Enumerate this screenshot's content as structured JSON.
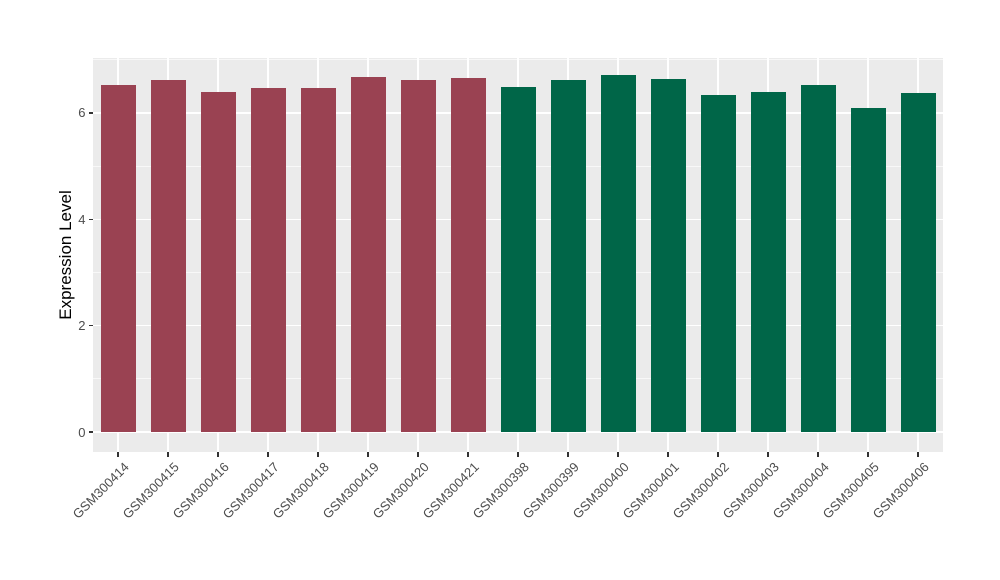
{
  "chart_data": {
    "type": "bar",
    "title": "",
    "xlabel": "",
    "ylabel": "Expression Level",
    "ylim": [
      0,
      7
    ],
    "yticks": [
      0,
      2,
      4,
      6
    ],
    "minor_yticks": [
      1,
      3,
      5,
      7
    ],
    "grid": "on",
    "legend": "none",
    "categories": [
      "GSM300414",
      "GSM300415",
      "GSM300416",
      "GSM300417",
      "GSM300418",
      "GSM300419",
      "GSM300420",
      "GSM300421",
      "GSM300398",
      "GSM300399",
      "GSM300400",
      "GSM300401",
      "GSM300402",
      "GSM300403",
      "GSM300404",
      "GSM300405",
      "GSM300406"
    ],
    "values": [
      6.52,
      6.62,
      6.4,
      6.47,
      6.47,
      6.67,
      6.63,
      6.65,
      6.49,
      6.62,
      6.72,
      6.64,
      6.34,
      6.4,
      6.53,
      6.1,
      6.37
    ],
    "bar_groups": [
      "group1",
      "group1",
      "group1",
      "group1",
      "group1",
      "group1",
      "group1",
      "group1",
      "group2",
      "group2",
      "group2",
      "group2",
      "group2",
      "group2",
      "group2",
      "group2",
      "group2"
    ],
    "colors": {
      "group1_fill": "#9A4252",
      "group2_fill": "#006648",
      "panel_background": "#EBEBEB",
      "gridline": "#FFFFFF",
      "tick_label": "#4D4D4D",
      "axis_title": "#000000",
      "tick_mark": "#333333"
    }
  }
}
